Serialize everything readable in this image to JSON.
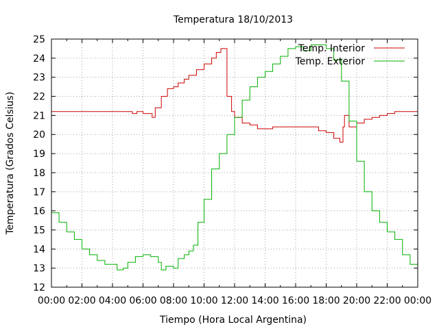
{
  "chart_data": {
    "type": "line",
    "title": "Temperatura 18/10/2013",
    "xlabel": "Tiempo (Hora Local Argentina)",
    "ylabel": "Temperatura (Grados Celsius)",
    "xlim": [
      0,
      24
    ],
    "ylim": [
      12,
      25
    ],
    "x_tick_labels": [
      "00:00",
      "02:00",
      "04:00",
      "06:00",
      "08:00",
      "10:00",
      "12:00",
      "14:00",
      "16:00",
      "18:00",
      "20:00",
      "22:00",
      "00:00"
    ],
    "y_tick_labels": [
      "12",
      "13",
      "14",
      "15",
      "16",
      "17",
      "18",
      "19",
      "20",
      "21",
      "22",
      "23",
      "24",
      "25"
    ],
    "grid": true,
    "legend_position": "top-right",
    "series": [
      {
        "name": "Temp. Interior",
        "color": "#cc0000",
        "points": [
          [
            0,
            21.2
          ],
          [
            1,
            21.2
          ],
          [
            2,
            21.2
          ],
          [
            3,
            21.2
          ],
          [
            4,
            21.2
          ],
          [
            5,
            21.2
          ],
          [
            5.3,
            21.1
          ],
          [
            5.6,
            21.2
          ],
          [
            6,
            21.1
          ],
          [
            6.5,
            21.1
          ],
          [
            6.6,
            20.9
          ],
          [
            6.8,
            21.4
          ],
          [
            7.2,
            22
          ],
          [
            7.6,
            22.4
          ],
          [
            8,
            22.5
          ],
          [
            8.3,
            22.7
          ],
          [
            8.7,
            22.9
          ],
          [
            9,
            23.1
          ],
          [
            9.5,
            23.4
          ],
          [
            10,
            23.7
          ],
          [
            10.5,
            24.0
          ],
          [
            10.8,
            24.3
          ],
          [
            11.1,
            24.5
          ],
          [
            11.5,
            22
          ],
          [
            11.8,
            21.2
          ],
          [
            12,
            20.9
          ],
          [
            12.5,
            20.6
          ],
          [
            13,
            20.5
          ],
          [
            13.5,
            20.3
          ],
          [
            14,
            20.3
          ],
          [
            14.5,
            20.4
          ],
          [
            15,
            20.4
          ],
          [
            16,
            20.4
          ],
          [
            17,
            20.4
          ],
          [
            17.5,
            20.2
          ],
          [
            18,
            20.1
          ],
          [
            18.5,
            19.8
          ],
          [
            18.9,
            19.6
          ],
          [
            19.1,
            20.4
          ],
          [
            19.2,
            21.0
          ],
          [
            19.5,
            20.4
          ],
          [
            20,
            20.6
          ],
          [
            20.5,
            20.8
          ],
          [
            21,
            20.9
          ],
          [
            21.5,
            21.0
          ],
          [
            22,
            21.1
          ],
          [
            22.5,
            21.2
          ],
          [
            23,
            21.2
          ],
          [
            24,
            21.2
          ]
        ]
      },
      {
        "name": "Temp. Exterior",
        "color": "#00b000",
        "points": [
          [
            0,
            15.9
          ],
          [
            0.5,
            15.4
          ],
          [
            1,
            14.9
          ],
          [
            1.5,
            14.5
          ],
          [
            2,
            14.0
          ],
          [
            2.5,
            13.7
          ],
          [
            3,
            13.4
          ],
          [
            3.5,
            13.2
          ],
          [
            4,
            13.2
          ],
          [
            4.3,
            12.9
          ],
          [
            4.7,
            13.0
          ],
          [
            5,
            13.3
          ],
          [
            5.5,
            13.6
          ],
          [
            6,
            13.7
          ],
          [
            6.5,
            13.6
          ],
          [
            7,
            13.3
          ],
          [
            7.2,
            12.9
          ],
          [
            7.5,
            13.1
          ],
          [
            8,
            13.0
          ],
          [
            8.3,
            13.5
          ],
          [
            8.7,
            13.7
          ],
          [
            9,
            13.9
          ],
          [
            9.3,
            14.2
          ],
          [
            9.6,
            15.4
          ],
          [
            10,
            16.6
          ],
          [
            10.5,
            18.2
          ],
          [
            11,
            19.0
          ],
          [
            11.5,
            20.0
          ],
          [
            12,
            20.9
          ],
          [
            12.5,
            21.8
          ],
          [
            13,
            22.5
          ],
          [
            13.5,
            23.0
          ],
          [
            14,
            23.3
          ],
          [
            14.5,
            23.7
          ],
          [
            15,
            24.1
          ],
          [
            15.5,
            24.5
          ],
          [
            16,
            24.6
          ],
          [
            16.5,
            24.4
          ],
          [
            17,
            24.7
          ],
          [
            17.5,
            24.7
          ],
          [
            18,
            24.5
          ],
          [
            18.5,
            23.9
          ],
          [
            19,
            22.8
          ],
          [
            19.5,
            20.7
          ],
          [
            20,
            18.6
          ],
          [
            20.5,
            17.0
          ],
          [
            21,
            16.0
          ],
          [
            21.5,
            15.4
          ],
          [
            22,
            14.9
          ],
          [
            22.5,
            14.5
          ],
          [
            23,
            13.7
          ],
          [
            23.5,
            13.2
          ],
          [
            24,
            12.7
          ]
        ]
      }
    ]
  }
}
